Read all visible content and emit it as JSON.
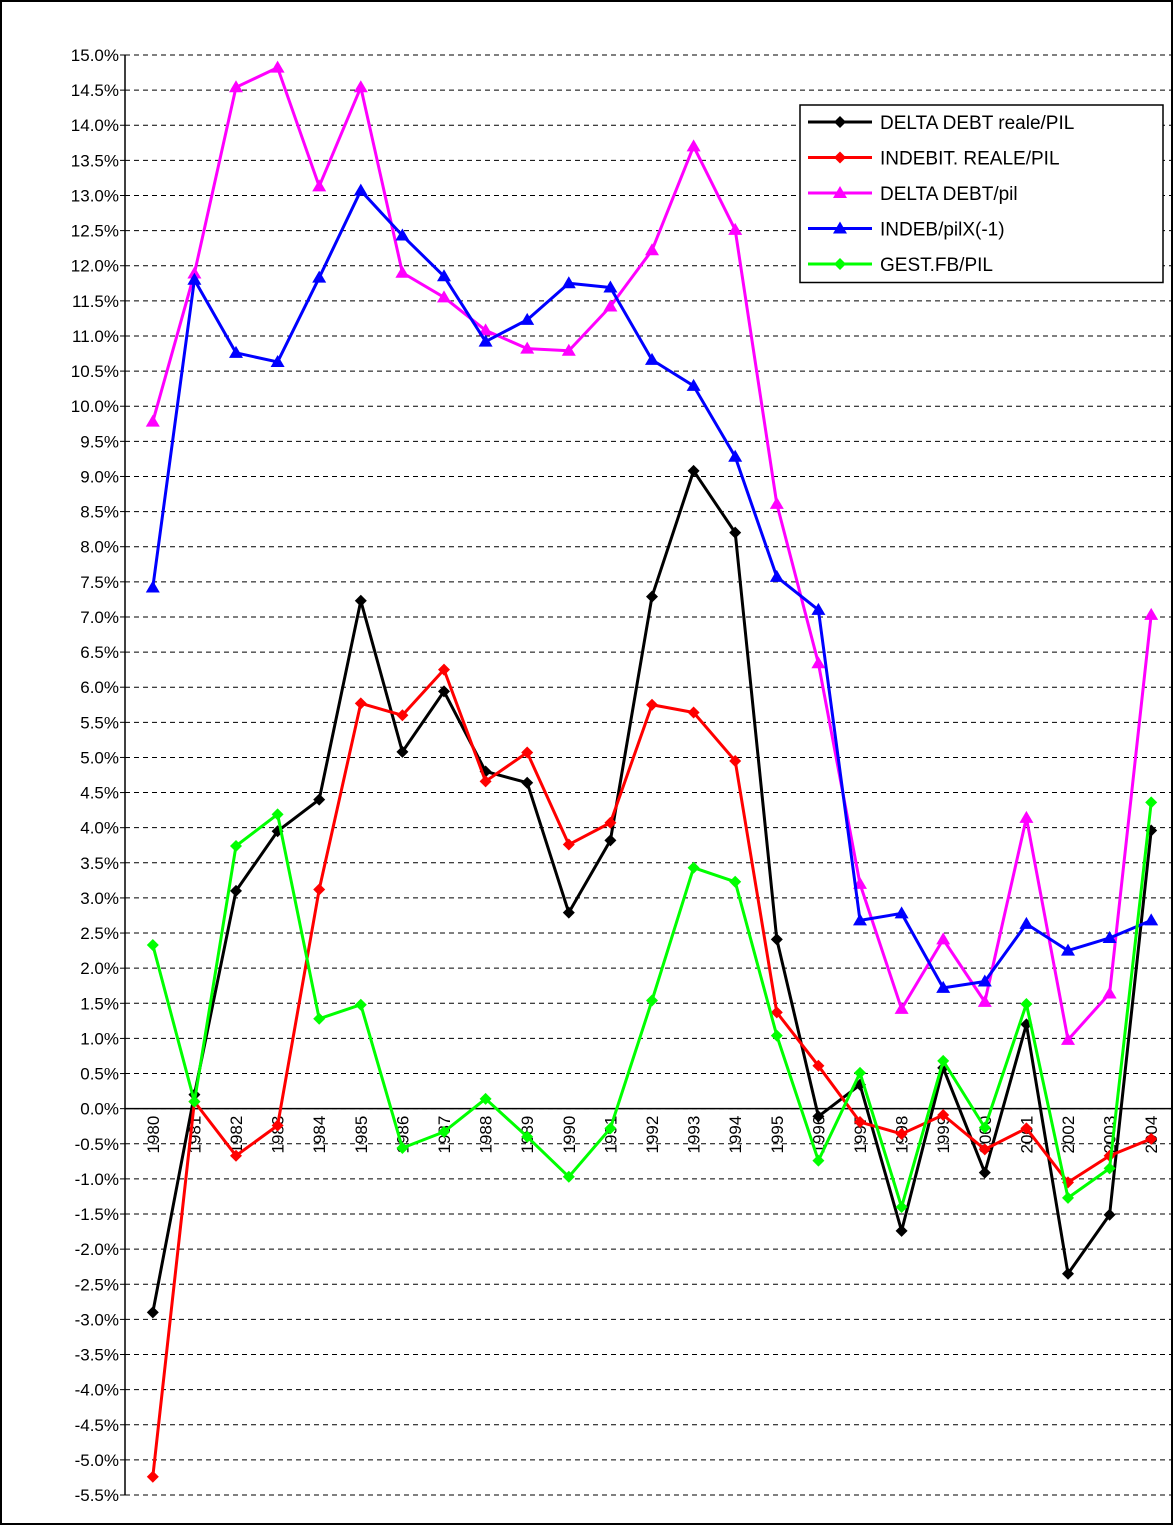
{
  "chart_data": {
    "type": "line",
    "categories": [
      "1980",
      "1981",
      "1982",
      "1983",
      "1984",
      "1985",
      "1986",
      "1987",
      "1988",
      "1989",
      "1990",
      "1991",
      "1992",
      "1993",
      "1994",
      "1995",
      "1996",
      "1997",
      "1998",
      "1999",
      "2000",
      "2001",
      "2002",
      "2003",
      "2004"
    ],
    "series": [
      {
        "name": "DELTA DEBT reale/PIL",
        "color": "#000000",
        "marker": "diamond",
        "values": [
          -2.9,
          0.2,
          3.1,
          3.95,
          4.4,
          7.23,
          5.08,
          5.94,
          4.8,
          4.64,
          2.79,
          3.82,
          7.29,
          9.08,
          8.2,
          2.41,
          -0.11,
          0.34,
          -1.74,
          0.58,
          -0.91,
          1.2,
          -2.35,
          -1.51,
          3.96
        ]
      },
      {
        "name": "INDEBIT. REALE/PIL",
        "color": "#ff0000",
        "marker": "diamond",
        "values": [
          -5.24,
          0.1,
          -0.67,
          -0.24,
          3.12,
          5.77,
          5.6,
          6.25,
          4.66,
          5.07,
          3.76,
          4.07,
          5.75,
          5.64,
          4.95,
          1.37,
          0.61,
          -0.19,
          -0.36,
          -0.09,
          -0.58,
          -0.28,
          -1.05,
          -0.67,
          -0.43
        ]
      },
      {
        "name": "DELTA DEBT/pil",
        "color": "#ff00ff",
        "marker": "triangle",
        "values": [
          9.78,
          11.89,
          14.54,
          14.82,
          13.13,
          14.54,
          11.9,
          11.55,
          11.08,
          10.82,
          10.79,
          11.42,
          12.22,
          13.7,
          12.51,
          8.61,
          6.34,
          3.2,
          1.42,
          2.41,
          1.52,
          4.14,
          0.98,
          1.64,
          7.03
        ]
      },
      {
        "name": "INDEB/pilX(-1)",
        "color": "#0000ff",
        "marker": "triangle",
        "values": [
          7.42,
          11.8,
          10.76,
          10.63,
          11.83,
          13.07,
          12.43,
          11.85,
          10.92,
          11.23,
          11.75,
          11.69,
          10.66,
          10.29,
          9.28,
          7.57,
          7.1,
          2.68,
          2.78,
          1.72,
          1.81,
          2.63,
          2.25,
          2.43,
          2.68
        ]
      },
      {
        "name": "GEST.FB/PIL",
        "color": "#00ff00",
        "marker": "diamond",
        "values": [
          2.33,
          0.1,
          3.74,
          4.19,
          1.28,
          1.48,
          -0.56,
          -0.33,
          0.14,
          -0.4,
          -0.97,
          -0.28,
          1.54,
          3.43,
          3.23,
          1.04,
          -0.74,
          0.51,
          -1.4,
          0.68,
          -0.27,
          1.49,
          -1.27,
          -0.85,
          4.36
        ]
      }
    ],
    "ylim": [
      -5.5,
      15.0
    ],
    "yticks": [
      {
        "value": -5.5,
        "label": "-5.5%"
      },
      {
        "value": -5.0,
        "label": "-5.0%"
      },
      {
        "value": -4.5,
        "label": "-4.5%"
      },
      {
        "value": -4.0,
        "label": "-4.0%"
      },
      {
        "value": -3.5,
        "label": "-3.5%"
      },
      {
        "value": -3.0,
        "label": "-3.0%"
      },
      {
        "value": -2.5,
        "label": "-2.5%"
      },
      {
        "value": -2.0,
        "label": "-2.0%"
      },
      {
        "value": -1.5,
        "label": "-1.5%"
      },
      {
        "value": -1.0,
        "label": "-1.0%"
      },
      {
        "value": -0.5,
        "label": "-0.5%"
      },
      {
        "value": 0.0,
        "label": "0.0%"
      },
      {
        "value": 0.5,
        "label": "0.5%"
      },
      {
        "value": 1.0,
        "label": "1.0%"
      },
      {
        "value": 1.5,
        "label": "1.5%"
      },
      {
        "value": 2.0,
        "label": "2.0%"
      },
      {
        "value": 2.5,
        "label": "2.5%"
      },
      {
        "value": 3.0,
        "label": "3.0%"
      },
      {
        "value": 3.5,
        "label": "3.5%"
      },
      {
        "value": 4.0,
        "label": "4.0%"
      },
      {
        "value": 4.5,
        "label": "4.5%"
      },
      {
        "value": 5.0,
        "label": "5.0%"
      },
      {
        "value": 5.5,
        "label": "5.5%"
      },
      {
        "value": 6.0,
        "label": "6.0%"
      },
      {
        "value": 6.5,
        "label": "6.5%"
      },
      {
        "value": 7.0,
        "label": "7.0%"
      },
      {
        "value": 7.5,
        "label": "7.5%"
      },
      {
        "value": 8.0,
        "label": "8.0%"
      },
      {
        "value": 8.5,
        "label": "8.5%"
      },
      {
        "value": 9.0,
        "label": "9.0%"
      },
      {
        "value": 9.5,
        "label": "9.5%"
      },
      {
        "value": 10.0,
        "label": "10.0%"
      },
      {
        "value": 10.5,
        "label": "10.5%"
      },
      {
        "value": 11.0,
        "label": "11.0%"
      },
      {
        "value": 11.5,
        "label": "11.5%"
      },
      {
        "value": 12.0,
        "label": "12.0%"
      },
      {
        "value": 12.5,
        "label": "12.5%"
      },
      {
        "value": 13.0,
        "label": "13.0%"
      },
      {
        "value": 13.5,
        "label": "13.5%"
      },
      {
        "value": 14.0,
        "label": "14.0%"
      },
      {
        "value": 14.5,
        "label": "14.5%"
      },
      {
        "value": 15.0,
        "label": "15.0%"
      }
    ],
    "grid": true,
    "legend": "top-right"
  }
}
